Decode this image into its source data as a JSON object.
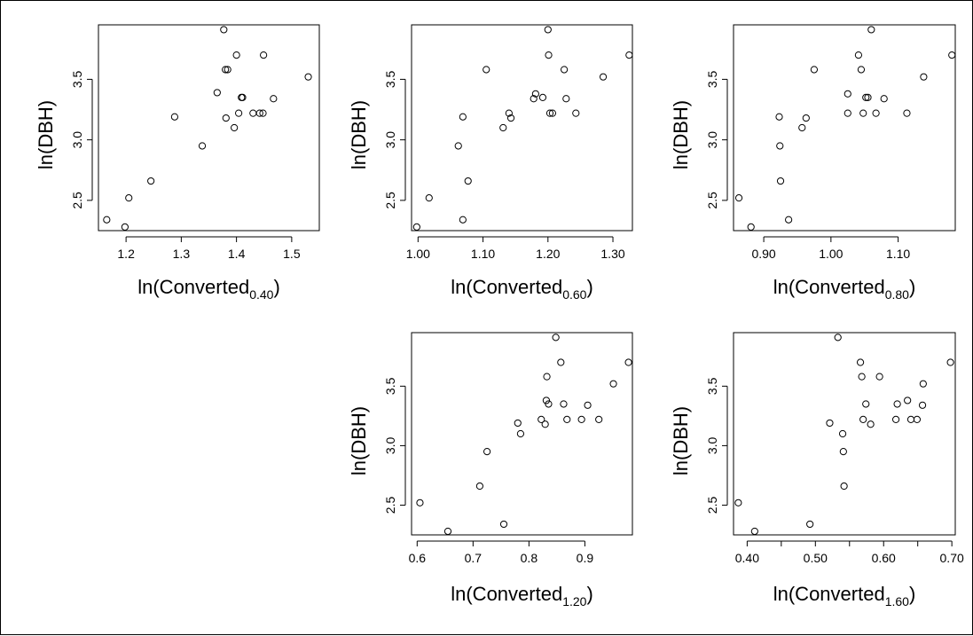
{
  "chart_data": [
    {
      "type": "scatter",
      "xlabel": "ln(Converted",
      "xlabel_sub": "0.40",
      "ylabel": "ln(DBH)",
      "xlim": [
        1.15,
        1.55
      ],
      "ylim": [
        2.25,
        3.95
      ],
      "xticks": [
        1.2,
        1.3,
        1.4,
        1.5
      ],
      "xtick_labels": [
        "1.2",
        "1.3",
        "1.4",
        "1.5"
      ],
      "yticks": [
        2.5,
        3.0,
        3.5
      ],
      "ytick_labels": [
        "2.5",
        "3.0",
        "3.5"
      ],
      "points": [
        {
          "x": 1.165,
          "y": 2.34
        },
        {
          "x": 1.198,
          "y": 2.28
        },
        {
          "x": 1.205,
          "y": 2.52
        },
        {
          "x": 1.245,
          "y": 2.66
        },
        {
          "x": 1.288,
          "y": 3.19
        },
        {
          "x": 1.338,
          "y": 2.95
        },
        {
          "x": 1.365,
          "y": 3.39
        },
        {
          "x": 1.377,
          "y": 3.91
        },
        {
          "x": 1.38,
          "y": 3.58
        },
        {
          "x": 1.384,
          "y": 3.58
        },
        {
          "x": 1.381,
          "y": 3.18
        },
        {
          "x": 1.396,
          "y": 3.1
        },
        {
          "x": 1.4,
          "y": 3.7
        },
        {
          "x": 1.404,
          "y": 3.22
        },
        {
          "x": 1.409,
          "y": 3.35
        },
        {
          "x": 1.411,
          "y": 3.35
        },
        {
          "x": 1.43,
          "y": 3.22
        },
        {
          "x": 1.442,
          "y": 3.22
        },
        {
          "x": 1.448,
          "y": 3.22
        },
        {
          "x": 1.449,
          "y": 3.7
        },
        {
          "x": 1.467,
          "y": 3.34
        },
        {
          "x": 1.53,
          "y": 3.52
        }
      ]
    },
    {
      "type": "scatter",
      "xlabel": "ln(Converted",
      "xlabel_sub": "0.60",
      "ylabel": "ln(DBH)",
      "xlim": [
        0.99,
        1.33
      ],
      "ylim": [
        2.25,
        3.95
      ],
      "xticks": [
        1.0,
        1.1,
        1.2,
        1.3
      ],
      "xtick_labels": [
        "1.00",
        "1.10",
        "1.20",
        "1.30"
      ],
      "yticks": [
        2.5,
        3.0,
        3.5
      ],
      "ytick_labels": [
        "2.5",
        "3.0",
        "3.5"
      ],
      "points": [
        {
          "x": 0.998,
          "y": 2.28
        },
        {
          "x": 1.017,
          "y": 2.52
        },
        {
          "x": 1.062,
          "y": 2.95
        },
        {
          "x": 1.069,
          "y": 2.34
        },
        {
          "x": 1.069,
          "y": 3.19
        },
        {
          "x": 1.077,
          "y": 2.66
        },
        {
          "x": 1.105,
          "y": 3.58
        },
        {
          "x": 1.131,
          "y": 3.1
        },
        {
          "x": 1.14,
          "y": 3.22
        },
        {
          "x": 1.143,
          "y": 3.18
        },
        {
          "x": 1.178,
          "y": 3.34
        },
        {
          "x": 1.181,
          "y": 3.38
        },
        {
          "x": 1.192,
          "y": 3.35
        },
        {
          "x": 1.2,
          "y": 3.91
        },
        {
          "x": 1.201,
          "y": 3.7
        },
        {
          "x": 1.203,
          "y": 3.22
        },
        {
          "x": 1.207,
          "y": 3.22
        },
        {
          "x": 1.225,
          "y": 3.58
        },
        {
          "x": 1.228,
          "y": 3.34
        },
        {
          "x": 1.243,
          "y": 3.22
        },
        {
          "x": 1.285,
          "y": 3.52
        },
        {
          "x": 1.325,
          "y": 3.7
        }
      ]
    },
    {
      "type": "scatter",
      "xlabel": "ln(Converted",
      "xlabel_sub": "0.80",
      "ylabel": "ln(DBH)",
      "xlim": [
        0.855,
        1.185
      ],
      "ylim": [
        2.25,
        3.95
      ],
      "xticks": [
        0.9,
        1.0,
        1.1
      ],
      "xtick_labels": [
        "0.90",
        "1.00",
        "1.10"
      ],
      "yticks": [
        2.5,
        3.0,
        3.5
      ],
      "ytick_labels": [
        "2.5",
        "3.0",
        "3.5"
      ],
      "points": [
        {
          "x": 0.863,
          "y": 2.52
        },
        {
          "x": 0.881,
          "y": 2.28
        },
        {
          "x": 0.923,
          "y": 3.19
        },
        {
          "x": 0.924,
          "y": 2.95
        },
        {
          "x": 0.925,
          "y": 2.66
        },
        {
          "x": 0.937,
          "y": 2.34
        },
        {
          "x": 0.957,
          "y": 3.1
        },
        {
          "x": 0.963,
          "y": 3.18
        },
        {
          "x": 0.975,
          "y": 3.58
        },
        {
          "x": 1.025,
          "y": 3.38
        },
        {
          "x": 1.025,
          "y": 3.22
        },
        {
          "x": 1.041,
          "y": 3.7
        },
        {
          "x": 1.045,
          "y": 3.58
        },
        {
          "x": 1.048,
          "y": 3.22
        },
        {
          "x": 1.052,
          "y": 3.35
        },
        {
          "x": 1.055,
          "y": 3.35
        },
        {
          "x": 1.06,
          "y": 3.91
        },
        {
          "x": 1.067,
          "y": 3.22
        },
        {
          "x": 1.079,
          "y": 3.34
        },
        {
          "x": 1.113,
          "y": 3.22
        },
        {
          "x": 1.138,
          "y": 3.52
        },
        {
          "x": 1.18,
          "y": 3.7
        }
      ]
    },
    {
      "type": "scatter",
      "xlabel": "ln(Converted",
      "xlabel_sub": "1.20",
      "ylabel": "ln(DBH)",
      "xlim": [
        0.59,
        0.985
      ],
      "ylim": [
        2.25,
        3.95
      ],
      "xticks": [
        0.6,
        0.7,
        0.8,
        0.9
      ],
      "xtick_labels": [
        "0.6",
        "0.7",
        "0.8",
        "0.9"
      ],
      "yticks": [
        2.5,
        3.0,
        3.5
      ],
      "ytick_labels": [
        "2.5",
        "3.0",
        "3.5"
      ],
      "points": [
        {
          "x": 0.605,
          "y": 2.52
        },
        {
          "x": 0.655,
          "y": 2.28
        },
        {
          "x": 0.712,
          "y": 2.66
        },
        {
          "x": 0.725,
          "y": 2.95
        },
        {
          "x": 0.755,
          "y": 2.34
        },
        {
          "x": 0.78,
          "y": 3.19
        },
        {
          "x": 0.785,
          "y": 3.1
        },
        {
          "x": 0.822,
          "y": 3.22
        },
        {
          "x": 0.829,
          "y": 3.18
        },
        {
          "x": 0.831,
          "y": 3.38
        },
        {
          "x": 0.832,
          "y": 3.58
        },
        {
          "x": 0.835,
          "y": 3.35
        },
        {
          "x": 0.848,
          "y": 3.91
        },
        {
          "x": 0.857,
          "y": 3.7
        },
        {
          "x": 0.862,
          "y": 3.35
        },
        {
          "x": 0.868,
          "y": 3.22
        },
        {
          "x": 0.894,
          "y": 3.22
        },
        {
          "x": 0.905,
          "y": 3.34
        },
        {
          "x": 0.925,
          "y": 3.22
        },
        {
          "x": 0.951,
          "y": 3.52
        },
        {
          "x": 0.978,
          "y": 3.7
        }
      ]
    },
    {
      "type": "scatter",
      "xlabel": "ln(Converted",
      "xlabel_sub": "1.60",
      "ylabel": "ln(DBH)",
      "xlim": [
        0.38,
        0.705
      ],
      "ylim": [
        2.25,
        3.95
      ],
      "xticks": [
        0.4,
        0.45,
        0.5,
        0.55,
        0.6,
        0.65,
        0.7
      ],
      "xtick_labels": [
        "0.40",
        "",
        "0.50",
        "",
        "0.60",
        "",
        "0.70"
      ],
      "yticks": [
        2.5,
        3.0,
        3.5
      ],
      "ytick_labels": [
        "2.5",
        "3.0",
        "3.5"
      ],
      "points": [
        {
          "x": 0.387,
          "y": 2.52
        },
        {
          "x": 0.411,
          "y": 2.28
        },
        {
          "x": 0.492,
          "y": 2.34
        },
        {
          "x": 0.521,
          "y": 3.19
        },
        {
          "x": 0.533,
          "y": 3.91
        },
        {
          "x": 0.54,
          "y": 3.1
        },
        {
          "x": 0.541,
          "y": 2.95
        },
        {
          "x": 0.542,
          "y": 2.66
        },
        {
          "x": 0.566,
          "y": 3.7
        },
        {
          "x": 0.568,
          "y": 3.58
        },
        {
          "x": 0.57,
          "y": 3.22
        },
        {
          "x": 0.574,
          "y": 3.35
        },
        {
          "x": 0.581,
          "y": 3.18
        },
        {
          "x": 0.594,
          "y": 3.58
        },
        {
          "x": 0.618,
          "y": 3.22
        },
        {
          "x": 0.62,
          "y": 3.35
        },
        {
          "x": 0.635,
          "y": 3.38
        },
        {
          "x": 0.64,
          "y": 3.22
        },
        {
          "x": 0.649,
          "y": 3.22
        },
        {
          "x": 0.657,
          "y": 3.34
        },
        {
          "x": 0.658,
          "y": 3.52
        },
        {
          "x": 0.698,
          "y": 3.7
        }
      ]
    }
  ]
}
